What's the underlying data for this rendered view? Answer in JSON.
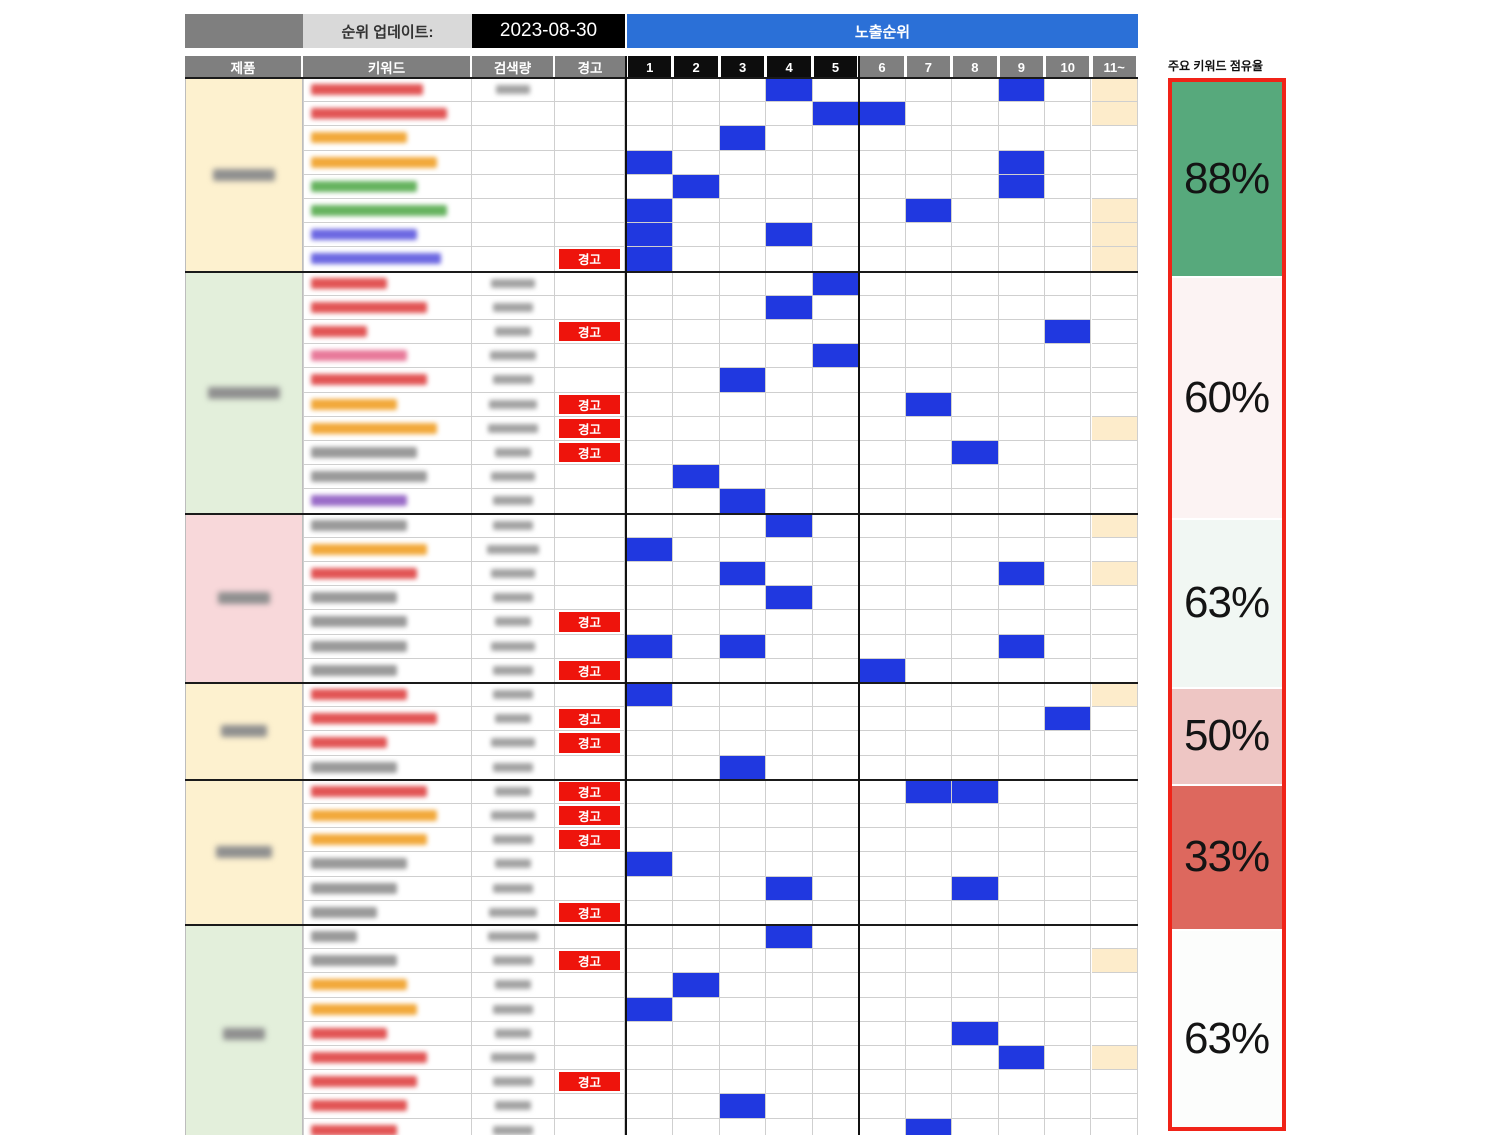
{
  "header": {
    "update_label": "순위 업데이트:",
    "date": "2023-08-30",
    "exposure_label": "노출순위",
    "col_product": "제품",
    "col_keyword": "키워드",
    "col_volume": "검색량",
    "col_warn": "경고",
    "rank_labels": [
      "1",
      "2",
      "3",
      "4",
      "5",
      "6",
      "7",
      "8",
      "9",
      "10",
      "11~"
    ]
  },
  "warn_label": "경고",
  "palette": {
    "red": "#e25555",
    "orange": "#f2a93b",
    "green": "#66b35f",
    "blue": "#6d68e2",
    "purple": "#9a6cc8",
    "pink": "#e87a9a",
    "gray": "#9a9a9a"
  },
  "colors": {
    "exposure_header_blue": "#2b70d7",
    "rank_fill_blue": "#2038e0",
    "cream_fill": "#fdeccb",
    "warn_red": "#ee140c",
    "panel_border_red": "#f02318",
    "header_gray": "#7f7f7f",
    "date_bg": "#000000",
    "group_yellow": "#fdf1cf",
    "group_green": "#e3efdb",
    "group_pink": "#f8d8da"
  },
  "panel": {
    "title": "주요 키워드 점유율",
    "boxes": [
      {
        "value": "88%",
        "bg": "#57a97c",
        "rows": 8
      },
      {
        "value": "60%",
        "bg": "#fcf3f3",
        "rows": 10
      },
      {
        "value": "63%",
        "bg": "#f1f7f3",
        "rows": 7
      },
      {
        "value": "50%",
        "bg": "#eec6c4",
        "rows": 4
      },
      {
        "value": "33%",
        "bg": "#dd685e",
        "rows": 6
      },
      {
        "value": "63%",
        "bg": "#fcfdfc",
        "rows": 9
      }
    ]
  },
  "groups": [
    {
      "bg": "#fdf1cf",
      "label_w": 62,
      "rows": [
        {
          "kw": [
            "red",
            112
          ],
          "vol": 34,
          "ranks": [
            4,
            9
          ],
          "cream": true
        },
        {
          "kw": [
            "red",
            136
          ],
          "ranks": [
            5,
            6
          ],
          "cream": true
        },
        {
          "kw": [
            "orange",
            96
          ],
          "ranks": [
            3
          ]
        },
        {
          "kw": [
            "orange",
            126
          ],
          "ranks": [
            1,
            9
          ]
        },
        {
          "kw": [
            "green",
            106
          ],
          "ranks": [
            2,
            9
          ]
        },
        {
          "kw": [
            "green",
            136
          ],
          "ranks": [
            1,
            7
          ],
          "cream": true
        },
        {
          "kw": [
            "blue",
            106
          ],
          "ranks": [
            1,
            4
          ],
          "cream": true
        },
        {
          "kw": [
            "blue",
            130
          ],
          "warn": true,
          "ranks": [
            1
          ],
          "cream": true
        }
      ]
    },
    {
      "bg": "#e3efdb",
      "label_w": 72,
      "rows": [
        {
          "kw": [
            "red",
            76
          ],
          "vol": 44,
          "ranks": [
            5
          ]
        },
        {
          "kw": [
            "red",
            116
          ],
          "vol": 40,
          "ranks": [
            4
          ]
        },
        {
          "kw": [
            "red",
            56
          ],
          "vol": 36,
          "warn": true,
          "ranks": [
            10
          ]
        },
        {
          "kw": [
            "pink",
            96
          ],
          "vol": 46,
          "ranks": [
            5
          ]
        },
        {
          "kw": [
            "red",
            116
          ],
          "vol": 40,
          "ranks": [
            3
          ]
        },
        {
          "kw": [
            "orange",
            86
          ],
          "vol": 48,
          "warn": true,
          "ranks": [
            7
          ]
        },
        {
          "kw": [
            "orange",
            126
          ],
          "vol": 50,
          "warn": true,
          "cream": true
        },
        {
          "kw": [
            "gray",
            106
          ],
          "vol": 36,
          "warn": true,
          "ranks": [
            8
          ]
        },
        {
          "kw": [
            "gray",
            116
          ],
          "vol": 44,
          "ranks": [
            2
          ]
        },
        {
          "kw": [
            "purple",
            96
          ],
          "vol": 40,
          "ranks": [
            3
          ]
        }
      ]
    },
    {
      "bg": "#f8d8da",
      "label_w": 52,
      "rows": [
        {
          "kw": [
            "gray",
            96
          ],
          "vol": 40,
          "ranks": [
            4
          ],
          "cream": true
        },
        {
          "kw": [
            "orange",
            116
          ],
          "vol": 52,
          "ranks": [
            1
          ]
        },
        {
          "kw": [
            "red",
            106
          ],
          "vol": 44,
          "ranks": [
            3,
            9
          ],
          "cream": true
        },
        {
          "kw": [
            "gray",
            86
          ],
          "vol": 40,
          "ranks": [
            4
          ]
        },
        {
          "kw": [
            "gray",
            96
          ],
          "vol": 36,
          "warn": true
        },
        {
          "kw": [
            "gray",
            96
          ],
          "vol": 44,
          "ranks": [
            1,
            3,
            9
          ]
        },
        {
          "kw": [
            "gray",
            86
          ],
          "vol": 40,
          "warn": true,
          "ranks": [
            6
          ]
        }
      ]
    },
    {
      "bg": "#fdf1cf",
      "label_w": 46,
      "rows": [
        {
          "kw": [
            "red",
            96
          ],
          "vol": 40,
          "ranks": [
            1
          ],
          "cream": true
        },
        {
          "kw": [
            "red",
            126
          ],
          "vol": 36,
          "warn": true,
          "ranks": [
            10
          ]
        },
        {
          "kw": [
            "red",
            76
          ],
          "vol": 44,
          "warn": true
        },
        {
          "kw": [
            "gray",
            86
          ],
          "vol": 40,
          "ranks": [
            3
          ]
        }
      ]
    },
    {
      "bg": "#fdf1cf",
      "label_w": 56,
      "rows": [
        {
          "kw": [
            "red",
            116
          ],
          "vol": 36,
          "warn": true,
          "ranks": [
            7,
            8
          ]
        },
        {
          "kw": [
            "orange",
            126
          ],
          "vol": 44,
          "warn": true
        },
        {
          "kw": [
            "orange",
            116
          ],
          "vol": 40,
          "warn": true
        },
        {
          "kw": [
            "gray",
            96
          ],
          "vol": 36,
          "ranks": [
            1
          ]
        },
        {
          "kw": [
            "gray",
            86
          ],
          "vol": 40,
          "ranks": [
            4,
            8
          ]
        },
        {
          "kw": [
            "gray",
            66
          ],
          "vol": 48,
          "warn": true
        }
      ]
    },
    {
      "bg": "#e3efdb",
      "label_w": 42,
      "rows": [
        {
          "kw": [
            "gray",
            46
          ],
          "vol": 50,
          "ranks": [
            4
          ]
        },
        {
          "kw": [
            "gray",
            86
          ],
          "vol": 40,
          "warn": true,
          "cream": true
        },
        {
          "kw": [
            "orange",
            96
          ],
          "vol": 36,
          "ranks": [
            2
          ]
        },
        {
          "kw": [
            "orange",
            106
          ],
          "vol": 40,
          "ranks": [
            1
          ]
        },
        {
          "kw": [
            "red",
            76
          ],
          "vol": 36,
          "ranks": [
            8
          ]
        },
        {
          "kw": [
            "red",
            116
          ],
          "vol": 44,
          "ranks": [
            9
          ],
          "cream": true
        },
        {
          "kw": [
            "red",
            106
          ],
          "vol": 40,
          "warn": true
        },
        {
          "kw": [
            "red",
            96
          ],
          "vol": 36,
          "ranks": [
            3
          ]
        },
        {
          "kw": [
            "red",
            86
          ],
          "vol": 40,
          "ranks": [
            7
          ]
        }
      ]
    }
  ]
}
